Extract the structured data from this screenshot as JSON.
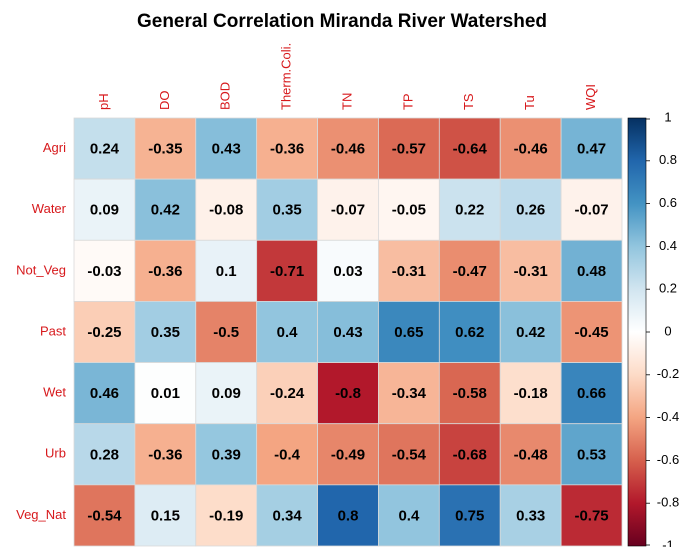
{
  "chart_data": {
    "type": "heatmap",
    "title": "General Correlation Miranda River Watershed",
    "x_categories": [
      "pH",
      "DO",
      "BOD",
      "Therm.Coli.",
      "TN",
      "TP",
      "TS",
      "Tu",
      "WQI"
    ],
    "y_categories": [
      "Agri",
      "Water",
      "Not_Veg",
      "Past",
      "Wet",
      "Urb",
      "Veg_Nat"
    ],
    "values": [
      [
        0.24,
        -0.35,
        0.43,
        -0.36,
        -0.46,
        -0.57,
        -0.64,
        -0.46,
        0.47
      ],
      [
        0.09,
        0.42,
        -0.08,
        0.35,
        -0.07,
        -0.05,
        0.22,
        0.26,
        -0.07
      ],
      [
        -0.03,
        -0.36,
        0.1,
        -0.71,
        0.03,
        -0.31,
        -0.47,
        -0.31,
        0.48
      ],
      [
        -0.25,
        0.35,
        -0.5,
        0.4,
        0.43,
        0.65,
        0.62,
        0.42,
        -0.45
      ],
      [
        0.46,
        0.01,
        0.09,
        -0.24,
        -0.8,
        -0.34,
        -0.58,
        -0.18,
        0.66
      ],
      [
        0.28,
        -0.36,
        0.39,
        -0.4,
        -0.49,
        -0.54,
        -0.68,
        -0.48,
        0.53
      ],
      [
        -0.54,
        0.15,
        -0.19,
        0.34,
        0.8,
        0.4,
        0.75,
        0.33,
        -0.75
      ]
    ],
    "colorscale": [
      "#67001f",
      "#b2182b",
      "#d6604d",
      "#f4a582",
      "#fddbc7",
      "#ffffff",
      "#d1e5f0",
      "#92c5de",
      "#4393c3",
      "#2166ac",
      "#053061"
    ],
    "label_color": "#d7191c",
    "ylim": [
      -1,
      1
    ],
    "yticks": [
      -1,
      -0.8,
      -0.6,
      -0.4,
      -0.2,
      0,
      0.2,
      0.4,
      0.6,
      0.8,
      1
    ]
  }
}
